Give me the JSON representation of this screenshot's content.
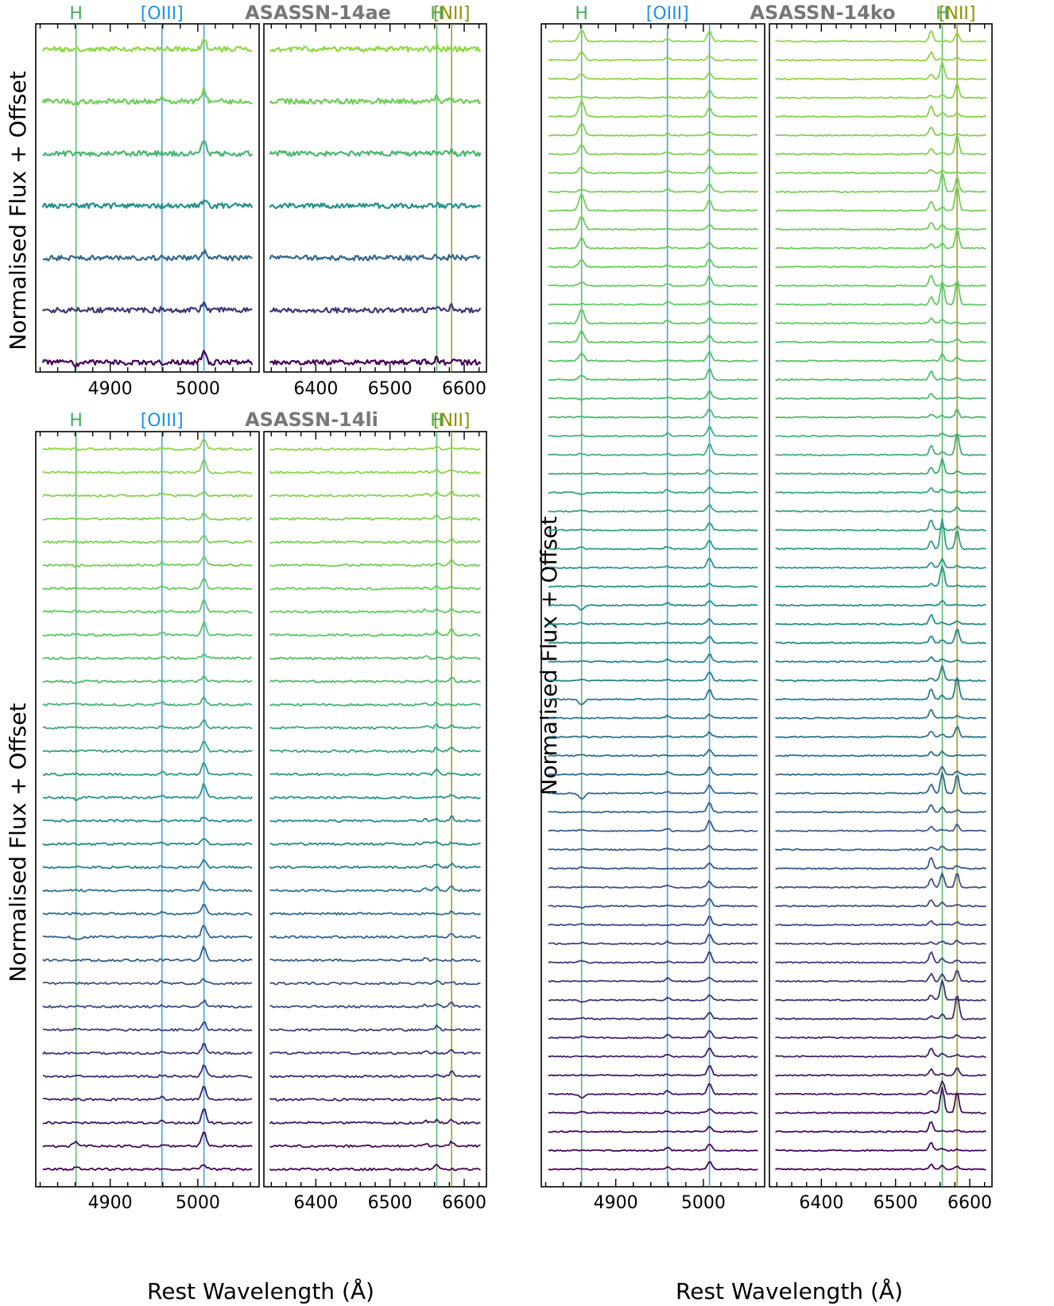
{
  "figure": {
    "y_axis_label": "Normalised Flux + Offset",
    "x_axis_label": "Rest Wavelength (Å)"
  },
  "colors": {
    "Hbeta_line": "#3fae5a",
    "OIII_line": "#1e90e6",
    "Halpha_line": "#3fae5a",
    "NII_line": "#8f8f00",
    "object_name": "#777777",
    "spectra_gradient": [
      "#440154",
      "#3b528b",
      "#21918c",
      "#5ec962",
      "#8fd744"
    ]
  },
  "chart_data": [
    {
      "type": "line",
      "object": "ASASSN-14ae",
      "n_spectra": 7,
      "panels": [
        {
          "xlim": [
            4815,
            5070
          ],
          "xticks": [
            4900,
            5000
          ],
          "lines": [
            {
              "label": "H",
              "x": 4861,
              "color": "#3fae5a"
            },
            {
              "label": "[OIII]",
              "x": 4959,
              "color": "#1e90e6"
            },
            {
              "label": "",
              "x": 5007,
              "color": "#1e90e6"
            }
          ]
        },
        {
          "xlim": [
            6330,
            6630
          ],
          "xticks": [
            6400,
            6500,
            6600
          ],
          "lines": [
            {
              "label": "H",
              "x": 6563,
              "color": "#3fae5a"
            },
            {
              "label": "[NII]",
              "x": 6583,
              "color": "#8f8f00"
            }
          ]
        }
      ],
      "ylabel": "Normalised Flux + Offset",
      "xlabel": ""
    },
    {
      "type": "line",
      "object": "ASASSN-14li",
      "n_spectra": 32,
      "panels": [
        {
          "xlim": [
            4815,
            5070
          ],
          "xticks": [
            4900,
            5000
          ],
          "lines": [
            {
              "label": "H",
              "x": 4861,
              "color": "#3fae5a"
            },
            {
              "label": "[OIII]",
              "x": 4959,
              "color": "#1e90e6"
            },
            {
              "label": "",
              "x": 5007,
              "color": "#1e90e6"
            }
          ]
        },
        {
          "xlim": [
            6330,
            6630
          ],
          "xticks": [
            6400,
            6500,
            6600
          ],
          "lines": [
            {
              "label": "H",
              "x": 6563,
              "color": "#3fae5a"
            },
            {
              "label": "[NII]",
              "x": 6583,
              "color": "#8f8f00"
            }
          ]
        }
      ],
      "ylabel": "Normalised Flux + Offset",
      "xlabel": "Rest Wavelength (Å)"
    },
    {
      "type": "line",
      "object": "ASASSN-14ko",
      "n_spectra": 61,
      "panels": [
        {
          "xlim": [
            4815,
            5070
          ],
          "xticks": [
            4900,
            5000
          ],
          "lines": [
            {
              "label": "H",
              "x": 4861,
              "color": "#3fae5a"
            },
            {
              "label": "[OIII]",
              "x": 4959,
              "color": "#1e90e6"
            },
            {
              "label": "",
              "x": 5007,
              "color": "#1e90e6"
            }
          ]
        },
        {
          "xlim": [
            6330,
            6630
          ],
          "xticks": [
            6400,
            6500,
            6600
          ],
          "lines": [
            {
              "label": "H",
              "x": 6563,
              "color": "#3fae5a"
            },
            {
              "label": "[NII]",
              "x": 6583,
              "color": "#8f8f00"
            }
          ]
        }
      ],
      "ylabel": "Normalised Flux + Offset",
      "xlabel": "Rest Wavelength (Å)"
    }
  ]
}
